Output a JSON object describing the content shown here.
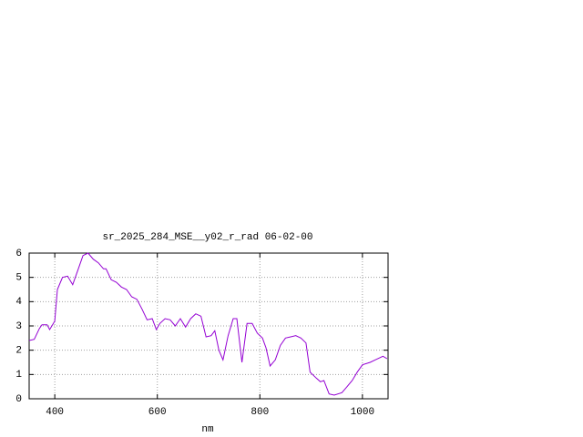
{
  "chart_data": {
    "type": "line",
    "title": "sr_2025_284_MSE__y02_r_rad 06-02-00",
    "x_label": "nm",
    "x": [
      350,
      360,
      370,
      375,
      385,
      390,
      400,
      405,
      415,
      425,
      435,
      445,
      455,
      465,
      475,
      485,
      495,
      500,
      510,
      520,
      530,
      540,
      550,
      560,
      570,
      580,
      590,
      598,
      605,
      615,
      625,
      635,
      645,
      655,
      665,
      675,
      685,
      695,
      705,
      712,
      720,
      728,
      738,
      748,
      755,
      765,
      775,
      785,
      795,
      805,
      812,
      820,
      830,
      840,
      850,
      860,
      870,
      880,
      890,
      898,
      910,
      918,
      925,
      935,
      945,
      960,
      970,
      980,
      990,
      1000,
      1015,
      1025,
      1040,
      1048
    ],
    "series": [
      {
        "color": "#9400d3",
        "values": [
          2.4,
          2.45,
          2.9,
          3.05,
          3.05,
          2.85,
          3.2,
          4.5,
          5.0,
          5.05,
          4.7,
          5.3,
          5.9,
          6.0,
          5.75,
          5.6,
          5.35,
          5.35,
          4.9,
          4.8,
          4.6,
          4.5,
          4.2,
          4.1,
          3.7,
          3.25,
          3.3,
          2.85,
          3.1,
          3.3,
          3.25,
          3.0,
          3.3,
          2.95,
          3.3,
          3.5,
          3.4,
          2.55,
          2.6,
          2.8,
          2.0,
          1.6,
          2.6,
          3.3,
          3.3,
          1.5,
          3.1,
          3.1,
          2.7,
          2.5,
          2.1,
          1.35,
          1.6,
          2.2,
          2.5,
          2.55,
          2.6,
          2.5,
          2.3,
          1.1,
          0.85,
          0.7,
          0.75,
          0.2,
          0.15,
          0.25,
          0.5,
          0.75,
          1.1,
          1.4,
          1.5,
          1.6,
          1.75,
          1.65
        ]
      }
    ],
    "xlim": [
      350,
      1050
    ],
    "xticks": [
      400,
      600,
      800,
      1000
    ],
    "ylim": [
      0,
      6
    ],
    "yticks": [
      0,
      1,
      2,
      3,
      4,
      5,
      6
    ],
    "grid": true
  }
}
